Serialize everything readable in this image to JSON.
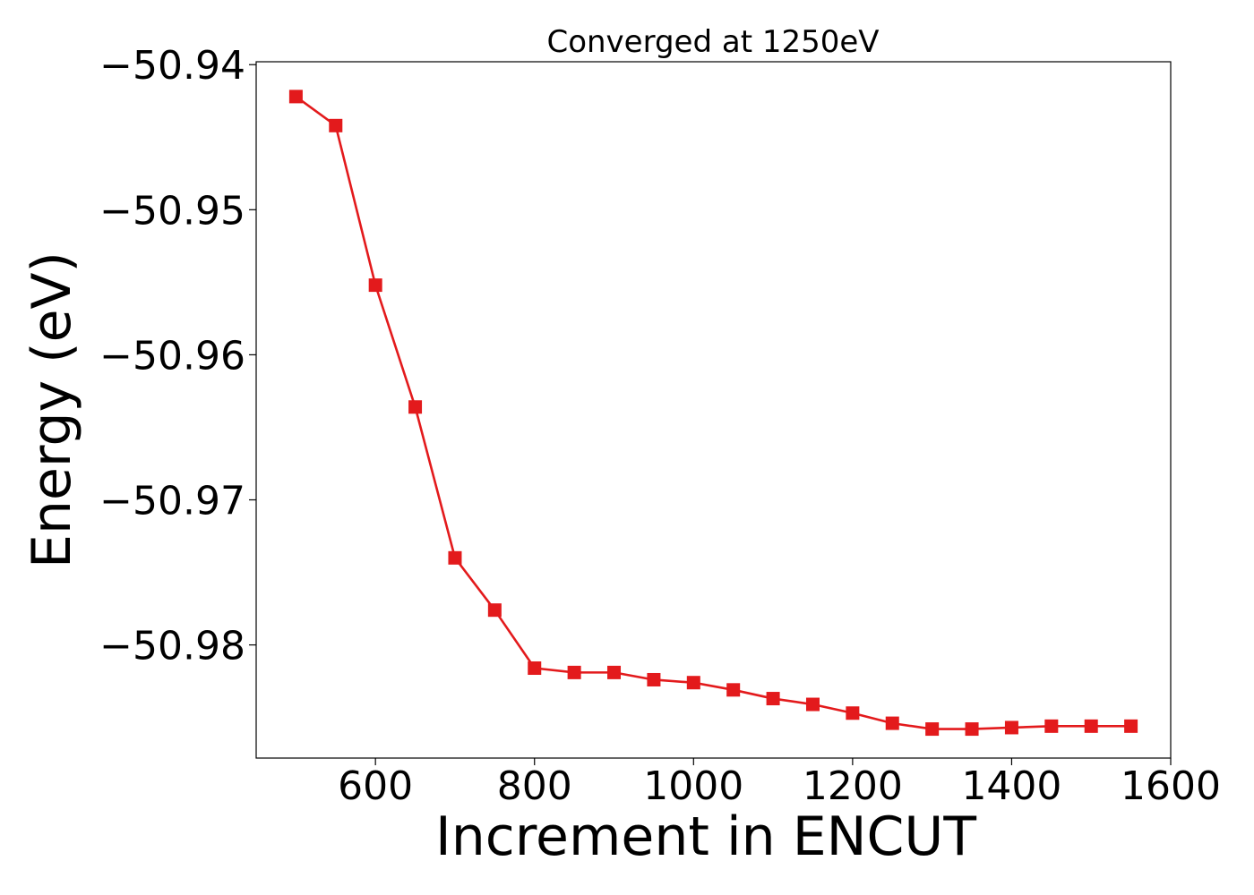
{
  "chart_data": {
    "type": "line",
    "title": "Converged at 1250eV",
    "xlabel": "Increment in ENCUT",
    "ylabel": "Energy (eV)",
    "xlim": [
      450,
      1600
    ],
    "ylim": [
      -50.9878,
      -50.9398
    ],
    "x_ticks": [
      600,
      800,
      1000,
      1200,
      1400,
      1600
    ],
    "x_tick_labels": [
      "600",
      "800",
      "1000",
      "1200",
      "1400",
      "1600"
    ],
    "y_ticks": [
      -50.94,
      -50.95,
      -50.96,
      -50.97,
      -50.98
    ],
    "y_tick_labels": [
      "−50.94",
      "−50.95",
      "−50.96",
      "−50.97",
      "−50.98"
    ],
    "grid": false,
    "legend": "none",
    "color": "#e31a1c",
    "marker": "square",
    "series": [
      {
        "x": [
          500,
          550,
          600,
          650,
          700,
          750,
          800,
          850,
          900,
          950,
          1000,
          1050,
          1100,
          1150,
          1200,
          1250,
          1300,
          1350,
          1400,
          1450,
          1500,
          1550
        ],
        "y": [
          -50.9422,
          -50.9442,
          -50.9552,
          -50.9636,
          -50.974,
          -50.9776,
          -50.9816,
          -50.9819,
          -50.9819,
          -50.9824,
          -50.9826,
          -50.9831,
          -50.9837,
          -50.9841,
          -50.9847,
          -50.9854,
          -50.9858,
          -50.9858,
          -50.9857,
          -50.9856,
          -50.9856,
          -50.9856
        ]
      }
    ]
  }
}
